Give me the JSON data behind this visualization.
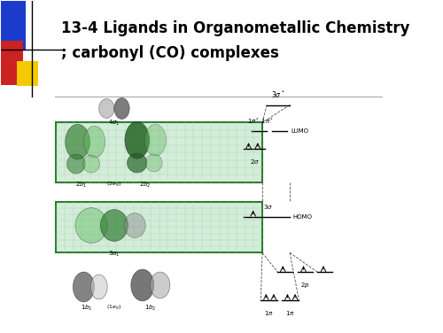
{
  "title_line1": "13-4 Ligands in Organometallic Chemistry",
  "title_line2": "; carbonyl (CO) complexes",
  "title_fontsize": 12,
  "bg_color": "#ffffff",
  "corner_blue": "#1a3bcc",
  "corner_red": "#cc2222",
  "corner_yellow": "#f5c800",
  "green_box_fill": "#d4edda",
  "green_box_edge": "#2e7d32",
  "green_grid": "#a5d6a7"
}
